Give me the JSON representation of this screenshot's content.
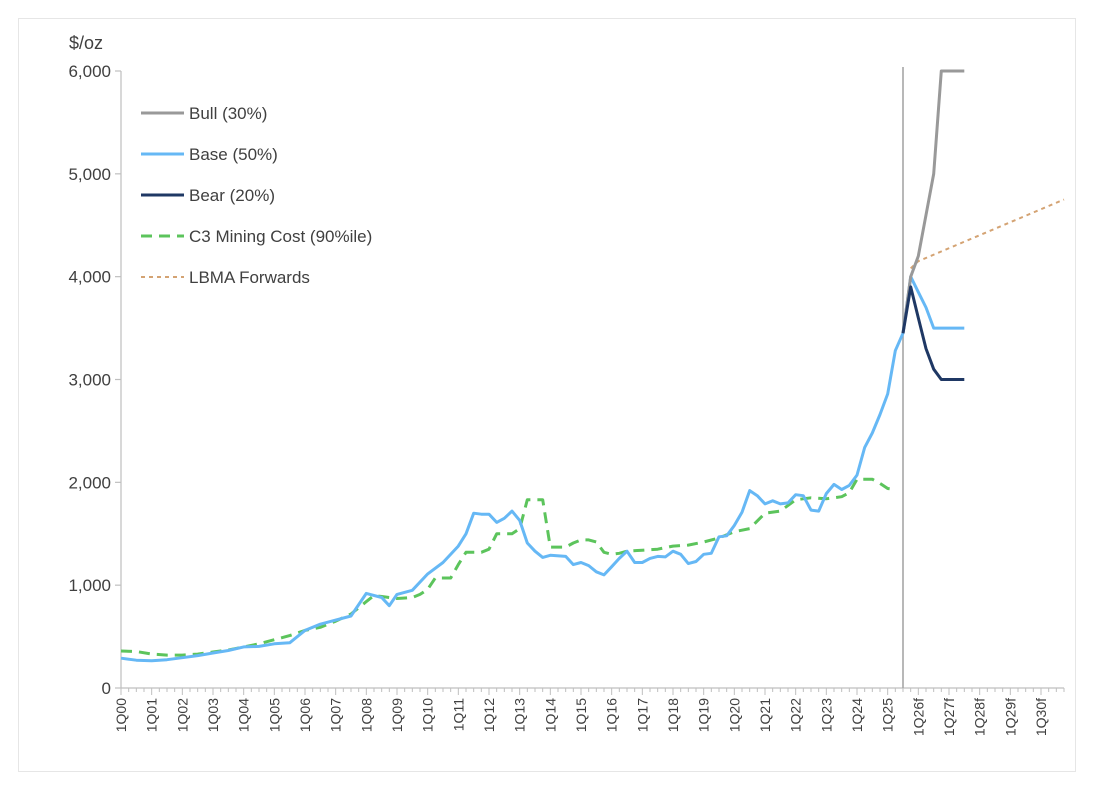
{
  "chart_data": {
    "type": "line",
    "title": "",
    "xlabel": "",
    "ylabel": "$/oz",
    "ylim": [
      0,
      6000
    ],
    "yticks": [
      0,
      1000,
      2000,
      3000,
      4000,
      5000,
      6000
    ],
    "ytick_labels": [
      "0",
      "1,000",
      "2,000",
      "3,000",
      "4,000",
      "5,000",
      "6,000"
    ],
    "x_periods": [
      "1Q00",
      "1Q01",
      "1Q02",
      "1Q03",
      "1Q04",
      "1Q05",
      "1Q06",
      "1Q07",
      "1Q08",
      "1Q09",
      "1Q10",
      "1Q11",
      "1Q12",
      "1Q13",
      "1Q14",
      "1Q15",
      "1Q16",
      "1Q17",
      "1Q18",
      "1Q19",
      "1Q20",
      "1Q21",
      "1Q22",
      "1Q23",
      "1Q24",
      "1Q25",
      "1Q26f",
      "1Q27f",
      "1Q28f",
      "1Q29f",
      "1Q30f"
    ],
    "x_start": "1Q00",
    "forecast_start": "3Q25",
    "grid": false,
    "legend_position": "top-left",
    "series": [
      {
        "name": "Bull (30%)",
        "color": "#999999",
        "dash": "solid",
        "points": [
          [
            "3Q25",
            3450
          ],
          [
            "4Q25",
            4000
          ],
          [
            "1Q26f",
            4200
          ],
          [
            "2Q26f",
            4600
          ],
          [
            "3Q26f",
            5000
          ],
          [
            "4Q26f",
            6000
          ],
          [
            "1Q27f",
            6000
          ],
          [
            "2Q27f",
            6000
          ],
          [
            "3Q27f",
            6000
          ]
        ]
      },
      {
        "name": "Base (50%)",
        "color": "#66b8f5",
        "dash": "solid",
        "points": [
          [
            "1Q00",
            290
          ],
          [
            "3Q00",
            270
          ],
          [
            "1Q01",
            265
          ],
          [
            "3Q01",
            275
          ],
          [
            "1Q02",
            295
          ],
          [
            "3Q02",
            315
          ],
          [
            "1Q03",
            340
          ],
          [
            "3Q03",
            365
          ],
          [
            "1Q04",
            400
          ],
          [
            "3Q04",
            405
          ],
          [
            "1Q05",
            430
          ],
          [
            "3Q05",
            440
          ],
          [
            "1Q06",
            560
          ],
          [
            "3Q06",
            620
          ],
          [
            "1Q07",
            660
          ],
          [
            "3Q07",
            700
          ],
          [
            "1Q08",
            920
          ],
          [
            "3Q08",
            880
          ],
          [
            "4Q08",
            800
          ],
          [
            "1Q09",
            910
          ],
          [
            "3Q09",
            950
          ],
          [
            "1Q10",
            1110
          ],
          [
            "3Q10",
            1220
          ],
          [
            "1Q11",
            1380
          ],
          [
            "2Q11",
            1500
          ],
          [
            "3Q11",
            1700
          ],
          [
            "4Q11",
            1690
          ],
          [
            "1Q12",
            1690
          ],
          [
            "2Q12",
            1610
          ],
          [
            "3Q12",
            1650
          ],
          [
            "4Q12",
            1720
          ],
          [
            "1Q13",
            1630
          ],
          [
            "2Q13",
            1410
          ],
          [
            "3Q13",
            1330
          ],
          [
            "4Q13",
            1270
          ],
          [
            "1Q14",
            1290
          ],
          [
            "3Q14",
            1280
          ],
          [
            "4Q14",
            1200
          ],
          [
            "1Q15",
            1220
          ],
          [
            "2Q15",
            1190
          ],
          [
            "3Q15",
            1130
          ],
          [
            "4Q15",
            1100
          ],
          [
            "1Q16",
            1180
          ],
          [
            "2Q16",
            1260
          ],
          [
            "3Q16",
            1330
          ],
          [
            "4Q16",
            1220
          ],
          [
            "1Q17",
            1220
          ],
          [
            "2Q17",
            1260
          ],
          [
            "3Q17",
            1280
          ],
          [
            "4Q17",
            1275
          ],
          [
            "1Q18",
            1330
          ],
          [
            "2Q18",
            1300
          ],
          [
            "3Q18",
            1210
          ],
          [
            "4Q18",
            1230
          ],
          [
            "1Q19",
            1300
          ],
          [
            "2Q19",
            1310
          ],
          [
            "3Q19",
            1470
          ],
          [
            "4Q19",
            1480
          ],
          [
            "1Q20",
            1580
          ],
          [
            "2Q20",
            1710
          ],
          [
            "3Q20",
            1920
          ],
          [
            "4Q20",
            1870
          ],
          [
            "1Q21",
            1790
          ],
          [
            "2Q21",
            1820
          ],
          [
            "3Q21",
            1790
          ],
          [
            "4Q21",
            1800
          ],
          [
            "1Q22",
            1880
          ],
          [
            "2Q22",
            1870
          ],
          [
            "3Q22",
            1730
          ],
          [
            "4Q22",
            1720
          ],
          [
            "1Q23",
            1890
          ],
          [
            "2Q23",
            1980
          ],
          [
            "3Q23",
            1930
          ],
          [
            "4Q23",
            1970
          ],
          [
            "1Q24",
            2070
          ],
          [
            "2Q24",
            2340
          ],
          [
            "3Q24",
            2480
          ],
          [
            "4Q24",
            2660
          ],
          [
            "1Q25",
            2860
          ],
          [
            "2Q25",
            3280
          ],
          [
            "3Q25",
            3450
          ],
          [
            "4Q25",
            4000
          ],
          [
            "1Q26f",
            3850
          ],
          [
            "2Q26f",
            3700
          ],
          [
            "3Q26f",
            3500
          ],
          [
            "4Q26f",
            3500
          ],
          [
            "1Q27f",
            3500
          ],
          [
            "2Q27f",
            3500
          ],
          [
            "3Q27f",
            3500
          ]
        ]
      },
      {
        "name": "Bear (20%)",
        "color": "#1f3864",
        "dash": "solid",
        "points": [
          [
            "3Q25",
            3450
          ],
          [
            "4Q25",
            3900
          ],
          [
            "1Q26f",
            3600
          ],
          [
            "2Q26f",
            3300
          ],
          [
            "3Q26f",
            3100
          ],
          [
            "4Q26f",
            3000
          ],
          [
            "1Q27f",
            3000
          ],
          [
            "2Q27f",
            3000
          ],
          [
            "3Q27f",
            3000
          ]
        ]
      },
      {
        "name": "C3 Mining Cost (90%ile)",
        "color": "#5cc45c",
        "dash": "dashed",
        "points": [
          [
            "1Q00",
            360
          ],
          [
            "3Q00",
            355
          ],
          [
            "1Q01",
            330
          ],
          [
            "3Q01",
            320
          ],
          [
            "1Q02",
            320
          ],
          [
            "3Q02",
            330
          ],
          [
            "1Q03",
            350
          ],
          [
            "3Q03",
            370
          ],
          [
            "1Q04",
            400
          ],
          [
            "3Q04",
            430
          ],
          [
            "1Q05",
            470
          ],
          [
            "3Q05",
            510
          ],
          [
            "1Q06",
            560
          ],
          [
            "3Q06",
            590
          ],
          [
            "1Q07",
            650
          ],
          [
            "3Q07",
            720
          ],
          [
            "1Q08",
            840
          ],
          [
            "2Q08",
            900
          ],
          [
            "4Q08",
            880
          ],
          [
            "1Q09",
            870
          ],
          [
            "3Q09",
            880
          ],
          [
            "4Q09",
            910
          ],
          [
            "1Q10",
            960
          ],
          [
            "2Q10",
            1070
          ],
          [
            "4Q10",
            1070
          ],
          [
            "1Q11",
            1200
          ],
          [
            "2Q11",
            1320
          ],
          [
            "4Q11",
            1320
          ],
          [
            "1Q12",
            1350
          ],
          [
            "2Q12",
            1500
          ],
          [
            "4Q12",
            1500
          ],
          [
            "1Q13",
            1550
          ],
          [
            "2Q13",
            1830
          ],
          [
            "4Q13",
            1830
          ],
          [
            "1Q14",
            1370
          ],
          [
            "3Q14",
            1370
          ],
          [
            "4Q14",
            1410
          ],
          [
            "1Q15",
            1440
          ],
          [
            "2Q15",
            1440
          ],
          [
            "3Q15",
            1420
          ],
          [
            "4Q15",
            1320
          ],
          [
            "1Q16",
            1300
          ],
          [
            "2Q16",
            1310
          ],
          [
            "3Q16",
            1330
          ],
          [
            "1Q17",
            1340
          ],
          [
            "3Q17",
            1350
          ],
          [
            "1Q18",
            1380
          ],
          [
            "3Q18",
            1390
          ],
          [
            "1Q19",
            1420
          ],
          [
            "3Q19",
            1460
          ],
          [
            "1Q20",
            1520
          ],
          [
            "3Q20",
            1550
          ],
          [
            "1Q21",
            1700
          ],
          [
            "3Q21",
            1720
          ],
          [
            "1Q22",
            1830
          ],
          [
            "3Q22",
            1850
          ],
          [
            "1Q23",
            1840
          ],
          [
            "3Q23",
            1860
          ],
          [
            "4Q23",
            1900
          ],
          [
            "1Q24",
            2030
          ],
          [
            "3Q24",
            2030
          ],
          [
            "4Q24",
            1990
          ],
          [
            "1Q25",
            1940
          ],
          [
            "2Q25",
            1930
          ]
        ]
      },
      {
        "name": "LBMA Forwards",
        "color": "#d4a373",
        "dash": "dotted",
        "points": [
          [
            "4Q25",
            4080
          ],
          [
            "1Q26f",
            4150
          ],
          [
            "4Q30f",
            4750
          ]
        ]
      }
    ]
  }
}
